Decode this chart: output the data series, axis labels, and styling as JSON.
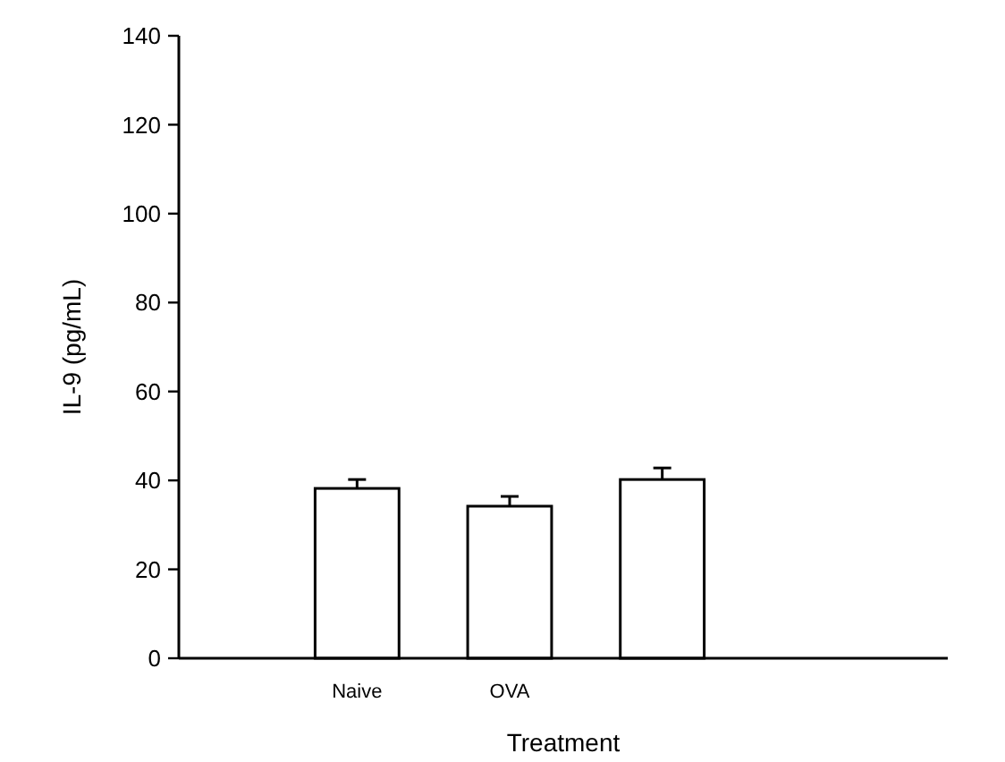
{
  "chart_data": {
    "type": "bar",
    "xlabel": "Treatment",
    "ylabel": "IL-9 (pg/mL)",
    "categories": [
      "Naive",
      "OVA",
      null
    ],
    "values": [
      38.2,
      34.2,
      40.2
    ],
    "errors": [
      [
        38.2,
        40.2
      ],
      [
        34.2,
        36.4
      ],
      [
        40.2,
        42.8
      ]
    ],
    "color": "#ffffff",
    "ylim": [
      0,
      140
    ],
    "yticks": [
      0,
      20,
      40,
      60,
      80,
      100,
      120,
      140
    ],
    "grid": false
  }
}
